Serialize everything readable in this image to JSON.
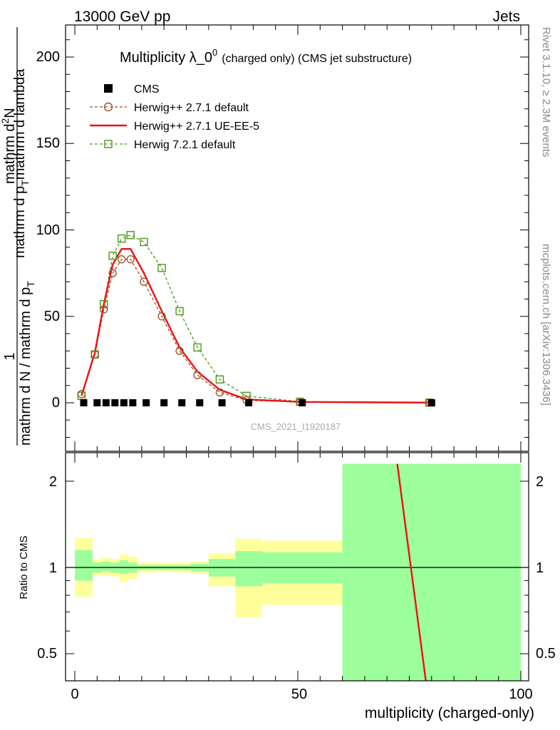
{
  "header": {
    "left": "13000 GeV pp",
    "right": "Jets"
  },
  "main_plot": {
    "title": "Multiplicity λ_0",
    "title_sup": "0",
    "title_suffix": "(charged only) (CMS jet substructure)",
    "analysis_id": "CMS_2021_I1920187",
    "ylabel_numer": "1",
    "ylabel_denom_top": "mathrm d N / mathrm d p",
    "ylabel_denom_sub": "T",
    "ylabel_frac_top": "mathrm d",
    "ylabel_frac_sup": "2",
    "ylabel_frac_top2": "N",
    "ylabel_frac_bottom": "mathrm d p",
    "ylabel_frac_bottom_sub": "T",
    "ylabel_frac_bottom2": "mathrm d lambda",
    "yticks": [
      "0",
      "50",
      "100",
      "150",
      "200"
    ]
  },
  "ratio_plot": {
    "ylabel": "Ratio to CMS",
    "yticks": [
      "0.5",
      "1",
      "2"
    ]
  },
  "xaxis": {
    "label": "multiplicity (charged-only)",
    "ticks": [
      "0",
      "50",
      "100"
    ]
  },
  "side_labels": {
    "rivet": "Rivet 3.1.10, ≥ 2.3M events",
    "mcplots": "mcplots.cern.ch [arXiv:1306.3436]"
  },
  "legend": {
    "cms": "CMS",
    "h271": "Herwig++ 2.7.1 default",
    "ueee5": "Herwig++ 2.7.1 UE-EE-5",
    "h721": "Herwig 7.2.1 default"
  },
  "colors": {
    "data": "#000000",
    "h271": "#a0522d",
    "ueee5": "#ee1111",
    "h721": "#4a9a1a",
    "band_inner": "#9cff9c",
    "band_outer": "#ffff9c"
  },
  "chart_data": [
    {
      "type": "line",
      "panel": "main",
      "xlim": [
        -2,
        100
      ],
      "ylim": [
        -25,
        220
      ],
      "series": [
        {
          "name": "CMS",
          "x": [
            2,
            5,
            7,
            9,
            11,
            13,
            16,
            20,
            24,
            28,
            33,
            39,
            51,
            80
          ],
          "y": [
            0,
            0,
            0,
            0,
            0,
            0,
            0,
            0,
            0,
            0,
            0,
            0,
            0,
            0
          ]
        },
        {
          "name": "Herwig++ 2.7.1 default",
          "x": [
            1.5,
            4.5,
            6.5,
            8.5,
            10.5,
            12.5,
            15.5,
            19.5,
            23.5,
            27.5,
            32.5,
            38.5,
            50.5,
            79.5
          ],
          "y": [
            5,
            28,
            54,
            75,
            83,
            83,
            70,
            50,
            30,
            16,
            6,
            1.5,
            0.4,
            0.1
          ]
        },
        {
          "name": "Herwig++ 2.7.1 UE-EE-5",
          "x": [
            1.5,
            4.5,
            6.5,
            8.5,
            10.5,
            12.5,
            15.5,
            19.5,
            23.5,
            27.5,
            32.5,
            38.5,
            50.5,
            79.5
          ],
          "y": [
            4,
            29,
            57,
            80,
            89,
            89,
            75,
            53,
            32,
            18,
            7.5,
            2,
            0.5,
            0.1
          ]
        },
        {
          "name": "Herwig 7.2.1 default",
          "x": [
            1.5,
            4.5,
            6.5,
            8.5,
            10.5,
            12.5,
            15.5,
            19.5,
            23.5,
            27.5,
            32.5,
            38.5,
            50.5,
            79.5
          ],
          "y": [
            4,
            28,
            57,
            85,
            95,
            97,
            93,
            78,
            53,
            32,
            13.5,
            4,
            0.6,
            0.1
          ]
        }
      ]
    },
    {
      "type": "area",
      "panel": "ratio",
      "xlim": [
        -2,
        100
      ],
      "ylim": [
        0.38,
        2.3
      ],
      "ylog": true,
      "bins": [
        {
          "lo": 0,
          "hi": 4,
          "inner": [
            0.9,
            1.15
          ],
          "outer": [
            0.79,
            1.27
          ]
        },
        {
          "lo": 4,
          "hi": 6,
          "inner": [
            0.96,
            1.04
          ],
          "outer": [
            0.94,
            1.07
          ]
        },
        {
          "lo": 6,
          "hi": 8,
          "inner": [
            0.97,
            1.05
          ],
          "outer": [
            0.94,
            1.08
          ]
        },
        {
          "lo": 8,
          "hi": 10,
          "inner": [
            0.96,
            1.04
          ],
          "outer": [
            0.93,
            1.07
          ]
        },
        {
          "lo": 10,
          "hi": 12,
          "inner": [
            0.95,
            1.06
          ],
          "outer": [
            0.89,
            1.11
          ]
        },
        {
          "lo": 12,
          "hi": 14,
          "inner": [
            0.96,
            1.04
          ],
          "outer": [
            0.91,
            1.09
          ]
        },
        {
          "lo": 14,
          "hi": 18,
          "inner": [
            0.98,
            1.02
          ],
          "outer": [
            0.96,
            1.04
          ]
        },
        {
          "lo": 18,
          "hi": 22,
          "inner": [
            0.98,
            1.02
          ],
          "outer": [
            0.97,
            1.04
          ]
        },
        {
          "lo": 22,
          "hi": 26,
          "inner": [
            0.98,
            1.02
          ],
          "outer": [
            0.96,
            1.04
          ]
        },
        {
          "lo": 26,
          "hi": 30,
          "inner": [
            0.97,
            1.03
          ],
          "outer": [
            0.95,
            1.05
          ]
        },
        {
          "lo": 30,
          "hi": 36,
          "inner": [
            0.93,
            1.07
          ],
          "outer": [
            0.86,
            1.12
          ]
        },
        {
          "lo": 36,
          "hi": 42,
          "inner": [
            0.86,
            1.14
          ],
          "outer": [
            0.67,
            1.26
          ]
        },
        {
          "lo": 42,
          "hi": 60,
          "inner": [
            0.88,
            1.13
          ],
          "outer": [
            0.74,
            1.24
          ]
        },
        {
          "lo": 60,
          "hi": 100,
          "inner": [
            0.38,
            2.3
          ],
          "outer": [
            0.38,
            2.3
          ]
        }
      ],
      "series": [
        {
          "name": "Herwig++ 2.7.1 UE-EE-5",
          "x": [
            72.3,
            78.7
          ],
          "y": [
            2.3,
            0.38
          ]
        }
      ]
    }
  ]
}
